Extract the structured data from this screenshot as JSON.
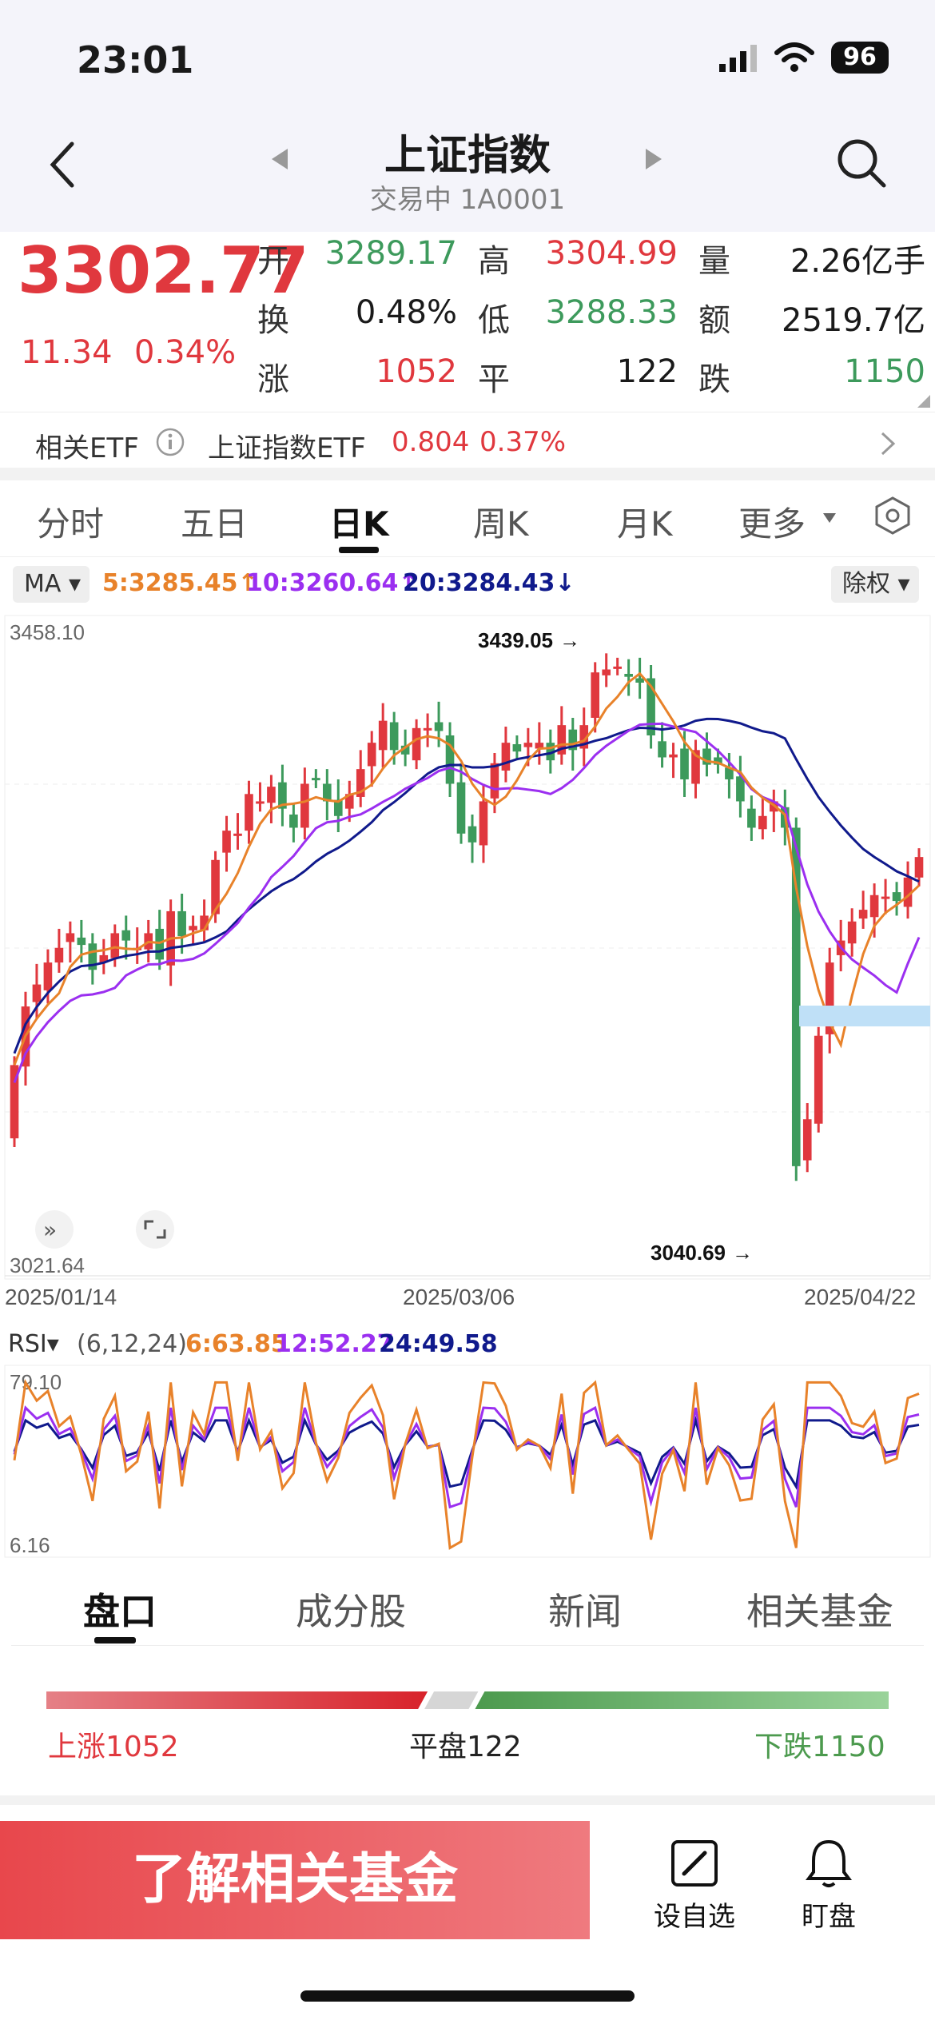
{
  "status_bar": {
    "time": "23:01",
    "battery": "96"
  },
  "header": {
    "title": "上证指数",
    "subtitle": "交易中 1A0001"
  },
  "quote": {
    "price": "3302.77",
    "change": "11.34",
    "change_pct": "0.34%",
    "rows": [
      [
        {
          "label": "开",
          "value": "3289.17"
        },
        {
          "label": "高",
          "value": "3304.99"
        },
        {
          "label": "量",
          "value": "2.26亿手"
        }
      ],
      [
        {
          "label": "换",
          "value": "0.48%"
        },
        {
          "label": "低",
          "value": "3288.33"
        },
        {
          "label": "额",
          "value": "2519.7亿"
        }
      ],
      [
        {
          "label": "涨",
          "value": "1052"
        },
        {
          "label": "平",
          "value": "122"
        },
        {
          "label": "跌",
          "value": "1150"
        }
      ]
    ]
  },
  "etf": {
    "label": "相关ETF",
    "name": "上证指数ETF",
    "price": "0.804",
    "pct": "0.37%"
  },
  "chart_tabs": [
    "分时",
    "五日",
    "日K",
    "周K",
    "月K",
    "更多"
  ],
  "ma": {
    "selector": "MA",
    "ma5": "5:3285.45",
    "ma10": "10:3260.64",
    "ma20": "20:3284.43",
    "adjust": "除权"
  },
  "kline": {
    "high_label": "3458.10",
    "low_label": "3021.64",
    "max_marker": "3439.05",
    "min_marker": "3040.69",
    "dates": [
      "2025/01/14",
      "2025/03/06",
      "2025/04/22"
    ]
  },
  "rsi": {
    "selector": "RSI",
    "params": "(6,12,24)",
    "r6": "6:63.85",
    "r12": "12:52.27",
    "r24": "24:49.58",
    "max": "79.10",
    "min": "6.16"
  },
  "bottom_tabs": [
    "盘口",
    "成分股",
    "新闻",
    "相关基金"
  ],
  "breadth": {
    "up": "上涨1052",
    "flat": "平盘122",
    "down": "下跌1150",
    "up_count": 1052,
    "flat_count": 122,
    "down_count": 1150
  },
  "actions": {
    "cta": "了解相关基金",
    "watchlist": "设自选",
    "watch": "盯盘"
  },
  "colors": {
    "up": "#e0383e",
    "down": "#3d9a5c",
    "ma5": "#e8822a",
    "ma10": "#9b2ff0",
    "ma20": "#101a8c"
  },
  "chart_data": {
    "type": "candlestick",
    "x_range": [
      "2025/01/14",
      "2025/04/22"
    ],
    "y_range": [
      3021.64,
      3458.1
    ],
    "annotations": [
      {
        "label": "3439.05",
        "kind": "high"
      },
      {
        "label": "3040.69",
        "kind": "low"
      }
    ]
  }
}
